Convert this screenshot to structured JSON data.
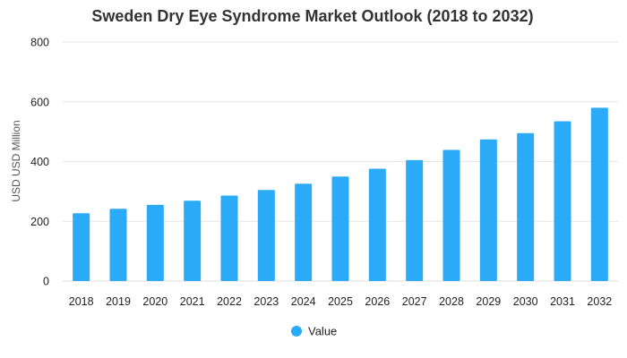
{
  "chart_data": {
    "type": "bar",
    "title": "Sweden Dry Eye Syndrome Market Outlook (2018 to 2032)",
    "ylabel": "USD USD Million",
    "xlabel": "",
    "categories": [
      "2018",
      "2019",
      "2020",
      "2021",
      "2022",
      "2023",
      "2024",
      "2025",
      "2026",
      "2027",
      "2028",
      "2029",
      "2030",
      "2031",
      "2032"
    ],
    "series": [
      {
        "name": "Value",
        "color": "#2aaaf7",
        "values": [
          227,
          242,
          255,
          269,
          286,
          305,
          326,
          350,
          376,
          405,
          439,
          474,
          495,
          535,
          580
        ]
      }
    ],
    "ylim": [
      0,
      800
    ],
    "yticks": [
      0,
      200,
      400,
      600,
      800
    ],
    "grid": true,
    "legend_position": "bottom-center"
  }
}
